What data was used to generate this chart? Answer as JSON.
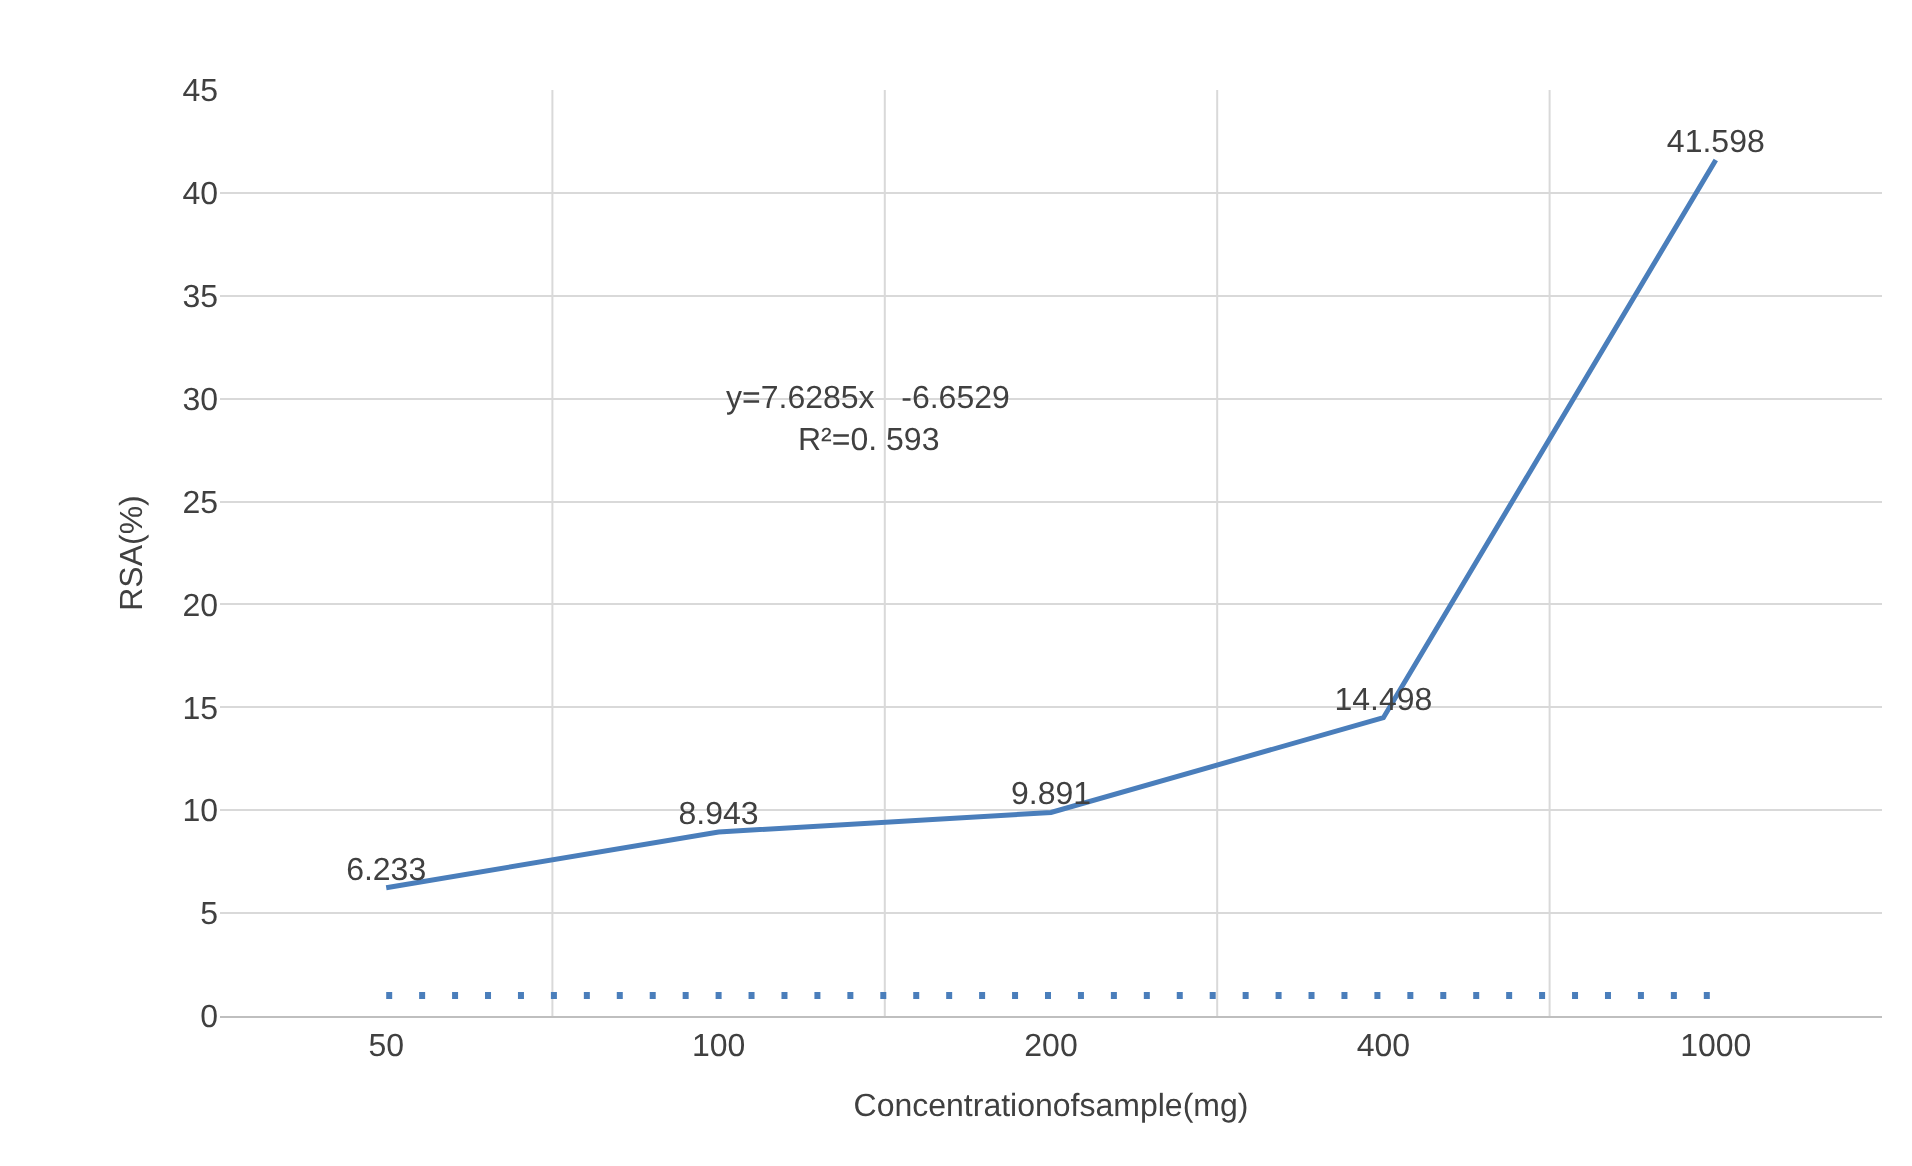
{
  "chart_data": {
    "type": "line",
    "xlabel": "Concentrationofsample(mg)",
    "ylabel": "RSA(%)",
    "categories": [
      "50",
      "100",
      "200",
      "400",
      "1000"
    ],
    "series": [
      {
        "color": "#4a7ebb",
        "values": [
          6.233,
          8.943,
          9.891,
          14.498,
          41.598
        ],
        "line_style": "solid",
        "data_labels": true
      },
      {
        "color": "#4a7ebb",
        "values": [
          1,
          1,
          1,
          1,
          1
        ],
        "line_style": "dotted"
      }
    ],
    "ylim": [
      0,
      45
    ],
    "yticks": [
      0,
      5,
      10,
      15,
      20,
      25,
      30,
      35,
      40,
      45
    ],
    "grid": true,
    "marker": "none",
    "annotations": [
      "y=7.6285x   -6.6529",
      "R²=0. 593"
    ]
  }
}
